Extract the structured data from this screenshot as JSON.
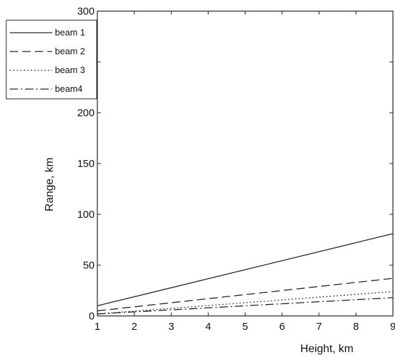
{
  "chart_data": {
    "type": "line",
    "title": "",
    "xlabel": "Height, km",
    "ylabel": "Range, km",
    "xlim": [
      1,
      9
    ],
    "ylim": [
      0,
      300
    ],
    "xticks": [
      "1",
      "2",
      "3",
      "4",
      "5",
      "6",
      "7",
      "8",
      "9"
    ],
    "yticks": [
      "0",
      "50",
      "100",
      "150",
      "200",
      "250",
      "300"
    ],
    "grid": false,
    "legend_position": "top-left",
    "series": [
      {
        "name": "beam 1",
        "style": "solid",
        "color": "#222222",
        "x": [
          1,
          9
        ],
        "y": [
          10,
          81
        ]
      },
      {
        "name": "beam 2",
        "style": "dashed",
        "color": "#222222",
        "x": [
          1,
          9
        ],
        "y": [
          5,
          37
        ]
      },
      {
        "name": "beam 3",
        "style": "dotted",
        "color": "#444444",
        "x": [
          1,
          9
        ],
        "y": [
          2,
          24
        ]
      },
      {
        "name": "beam4",
        "style": "dashdot",
        "color": "#222222",
        "x": [
          1,
          9
        ],
        "y": [
          2,
          18
        ]
      }
    ]
  }
}
